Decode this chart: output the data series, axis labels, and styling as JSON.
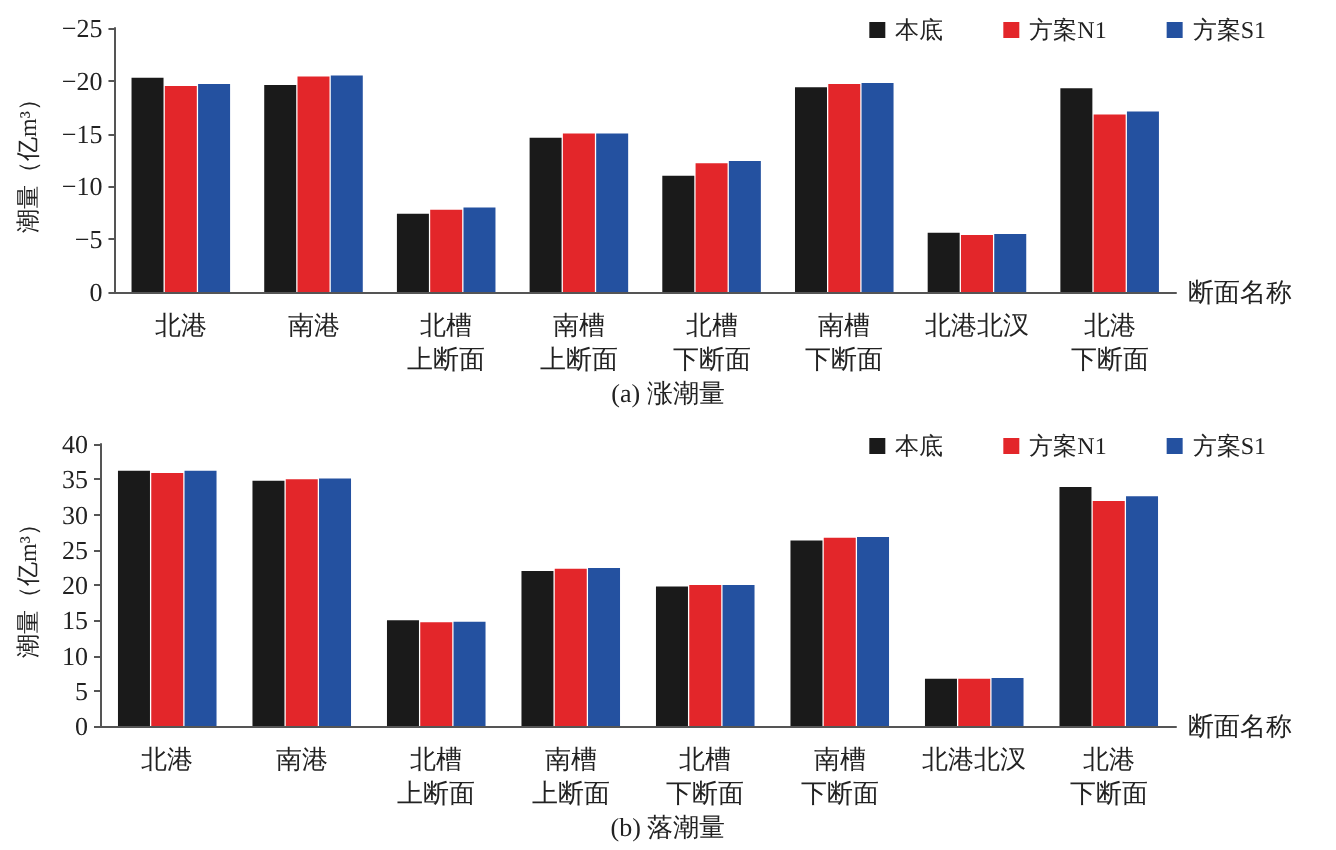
{
  "chart_data": [
    {
      "type": "bar",
      "title": "(a) 涨潮量",
      "xlabel": "断面名称",
      "ylabel": "潮量（亿m³）",
      "categories": [
        "北港",
        "南港",
        "北槽上断面",
        "南槽上断面",
        "北槽下断面",
        "南槽下断面",
        "北港北汊",
        "北港下断面"
      ],
      "series": [
        {
          "name": "本底",
          "color": "#1a1a1a",
          "values": [
            -20.3,
            -19.6,
            -7.4,
            -14.6,
            -11.0,
            -19.4,
            -5.6,
            -19.3
          ]
        },
        {
          "name": "方案N1",
          "color": "#e3262a",
          "values": [
            -19.5,
            -20.4,
            -7.8,
            -15.0,
            -12.2,
            -19.7,
            -5.4,
            -16.8
          ]
        },
        {
          "name": "方案S1",
          "color": "#2451a0",
          "values": [
            -19.7,
            -20.5,
            -8.0,
            -15.0,
            -12.4,
            -19.8,
            -5.5,
            -17.1
          ]
        }
      ],
      "ylim": [
        0,
        -25
      ],
      "yticks": [
        {
          "value": 0,
          "label": "0"
        },
        {
          "value": -5,
          "label": "−5"
        },
        {
          "value": -10,
          "label": "−10"
        },
        {
          "value": -15,
          "label": "−15"
        },
        {
          "value": -20,
          "label": "−20"
        },
        {
          "value": -25,
          "label": "−25"
        }
      ],
      "grid": false,
      "legend": "top right"
    },
    {
      "type": "bar",
      "title": "(b) 落潮量",
      "xlabel": "断面名称",
      "ylabel": "潮量（亿m³）",
      "categories": [
        "北港",
        "南港",
        "北槽上断面",
        "南槽上断面",
        "北槽下断面",
        "南槽下断面",
        "北港北汊",
        "北港下断面"
      ],
      "series": [
        {
          "name": "本底",
          "color": "#1a1a1a",
          "values": [
            36.2,
            34.8,
            15.0,
            22.0,
            19.8,
            26.3,
            6.7,
            33.9
          ]
        },
        {
          "name": "方案N1",
          "color": "#e3262a",
          "values": [
            35.9,
            35.0,
            14.7,
            22.3,
            20.0,
            26.7,
            6.7,
            31.9
          ]
        },
        {
          "name": "方案S1",
          "color": "#2451a0",
          "values": [
            36.2,
            35.1,
            14.8,
            22.4,
            20.0,
            26.8,
            6.8,
            32.6
          ]
        }
      ],
      "ylim": [
        0,
        40
      ],
      "yticks": [
        0,
        5,
        10,
        15,
        20,
        25,
        30,
        35,
        40
      ],
      "grid": false,
      "legend": "top right"
    }
  ]
}
